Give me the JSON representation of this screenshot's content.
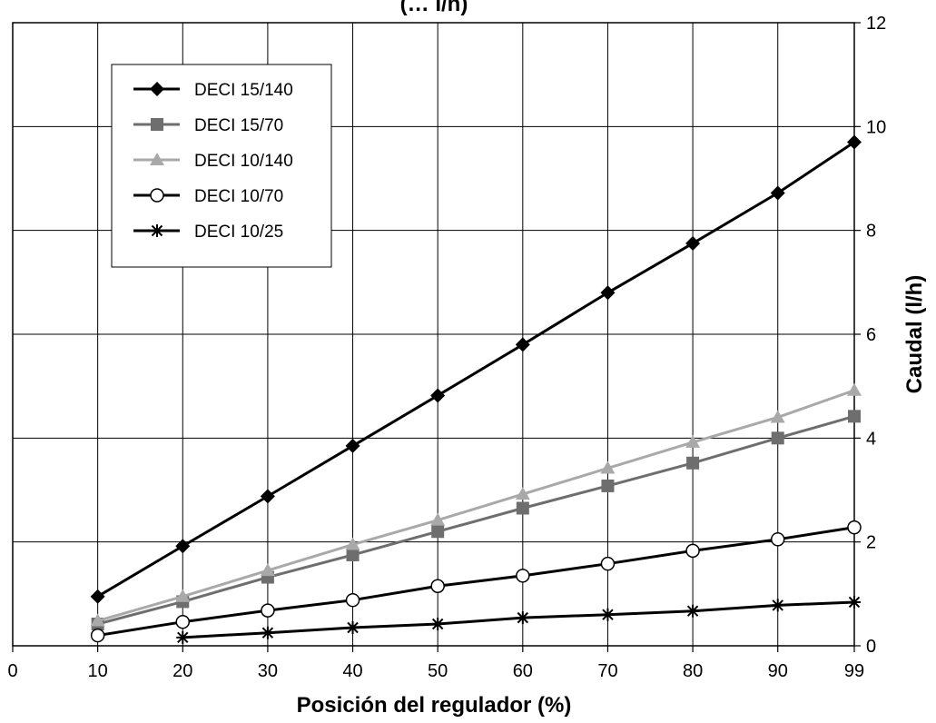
{
  "chart_data": {
    "type": "line",
    "title": "(… I/h)",
    "xlabel": "Posición del regulador (%)",
    "ylabel": "Caudal (l/h)",
    "x_ticks": [
      "0",
      "10",
      "20",
      "30",
      "40",
      "50",
      "60",
      "70",
      "80",
      "90",
      "99"
    ],
    "xlim": [
      0,
      99
    ],
    "y_ticks": [
      0,
      2,
      4,
      6,
      8,
      10,
      12
    ],
    "ylim": [
      0,
      12
    ],
    "y_axis_side": "right",
    "grid": true,
    "legend_position": "top-left",
    "series": [
      {
        "name": "DECI 15/140",
        "marker": "diamond",
        "color": "#000000",
        "x": [
          10,
          20,
          30,
          40,
          50,
          60,
          70,
          80,
          90,
          99
        ],
        "y": [
          0.95,
          1.92,
          2.88,
          3.85,
          4.82,
          5.8,
          6.8,
          7.75,
          8.72,
          9.7
        ]
      },
      {
        "name": "DECI 15/70",
        "marker": "square",
        "color": "#6e6e6e",
        "x": [
          10,
          20,
          30,
          40,
          50,
          60,
          70,
          80,
          90,
          99
        ],
        "y": [
          0.42,
          0.85,
          1.32,
          1.75,
          2.2,
          2.65,
          3.08,
          3.52,
          4.0,
          4.42
        ]
      },
      {
        "name": "DECI 10/140",
        "marker": "triangle",
        "color": "#a9a9a9",
        "x": [
          10,
          20,
          30,
          40,
          50,
          60,
          70,
          80,
          90,
          99
        ],
        "y": [
          0.48,
          0.95,
          1.45,
          1.95,
          2.42,
          2.92,
          3.42,
          3.92,
          4.4,
          4.92
        ]
      },
      {
        "name": "DECI 10/70",
        "marker": "circle",
        "color": "#000000",
        "x": [
          10,
          20,
          30,
          40,
          50,
          60,
          70,
          80,
          90,
          99
        ],
        "y": [
          0.2,
          0.46,
          0.68,
          0.88,
          1.15,
          1.35,
          1.58,
          1.83,
          2.05,
          2.28
        ]
      },
      {
        "name": "DECI 10/25",
        "marker": "asterisk",
        "color": "#000000",
        "x": [
          20,
          30,
          40,
          50,
          60,
          70,
          80,
          90,
          99
        ],
        "y": [
          0.16,
          0.25,
          0.35,
          0.42,
          0.54,
          0.6,
          0.67,
          0.78,
          0.84
        ]
      }
    ]
  }
}
